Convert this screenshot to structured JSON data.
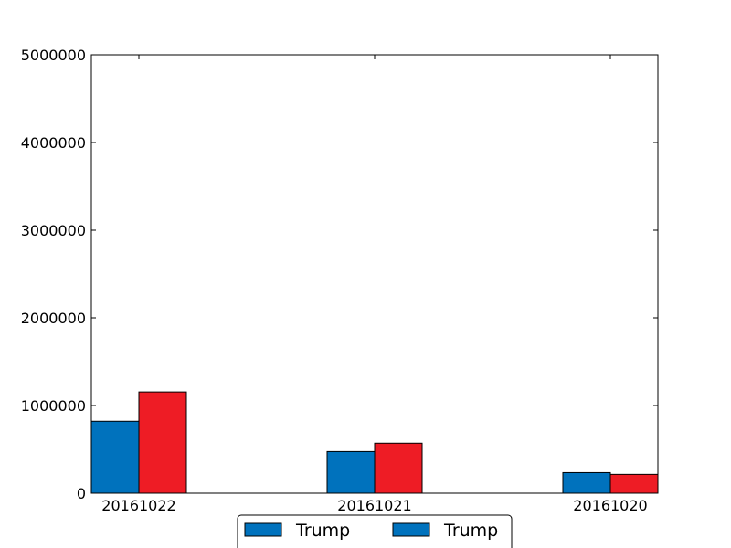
{
  "chart_data": {
    "type": "bar",
    "categories": [
      "20161022",
      "20161021",
      "20161020"
    ],
    "series": [
      {
        "name": "Trump",
        "color": "#0072bd",
        "values": [
          820000,
          475000,
          235000
        ]
      },
      {
        "name": "",
        "color": "#ee1c25",
        "values": [
          1155000,
          570000,
          215000
        ]
      }
    ],
    "title": "",
    "xlabel": "",
    "ylabel": "",
    "ylim": [
      0,
      5000000
    ],
    "yticks": [
      0,
      1000000,
      2000000,
      3000000,
      4000000,
      5000000
    ],
    "ytick_labels": [
      "0",
      "1000000",
      "2000000",
      "3000000",
      "4000000",
      "5000000"
    ],
    "legend": {
      "placement": "bottom-center",
      "entries": [
        {
          "label": "Trump",
          "color": "#0072bd"
        },
        {
          "label": "Trump",
          "color": "#0072bd"
        }
      ]
    },
    "grid": false
  }
}
